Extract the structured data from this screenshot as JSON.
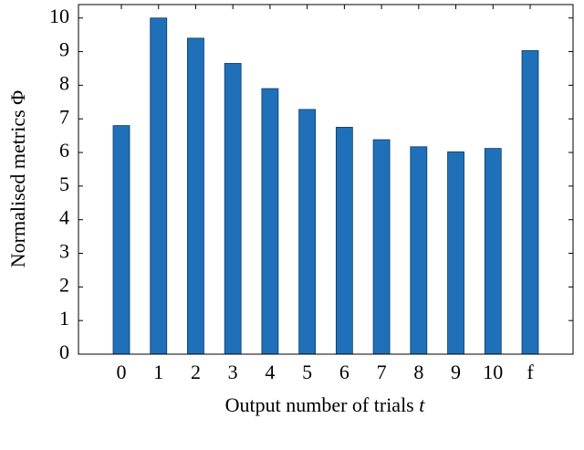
{
  "chart_data": {
    "type": "bar",
    "categories": [
      "0",
      "1",
      "2",
      "3",
      "4",
      "5",
      "6",
      "7",
      "8",
      "9",
      "10",
      "f"
    ],
    "values": [
      6.8,
      10.0,
      9.4,
      8.65,
      7.9,
      7.28,
      6.75,
      6.38,
      6.17,
      6.02,
      6.12,
      9.03
    ],
    "color": "#1f70b8",
    "ylim": [
      0,
      10.4
    ],
    "yticks": [
      0,
      1,
      2,
      3,
      4,
      5,
      6,
      7,
      8,
      9,
      10
    ],
    "xlabel": "Output number of trials",
    "xlabel_var": "t",
    "ylabel": "Normalised metrics Φ",
    "grid": false
  }
}
